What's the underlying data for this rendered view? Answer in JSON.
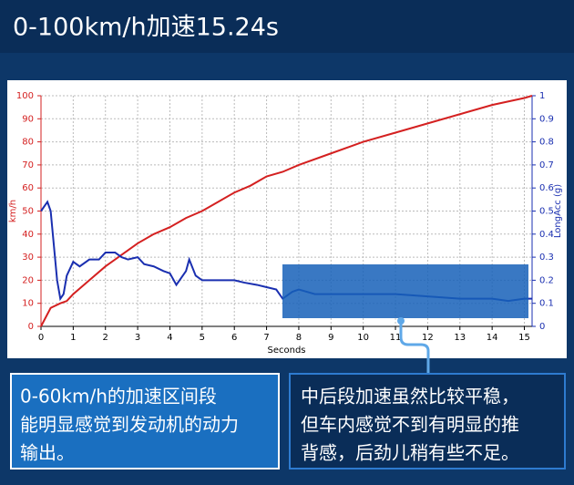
{
  "header": {
    "title": "0-100km/h加速15.24s"
  },
  "chart_data": {
    "type": "line",
    "x_label": "Seconds",
    "y_label": "km/h",
    "y2_label": "LongAcc (g)",
    "xlim": [
      0,
      15.24
    ],
    "xticks": [
      0,
      1,
      2,
      3,
      4,
      5,
      6,
      7,
      8,
      9,
      10,
      11,
      12,
      13,
      14,
      15
    ],
    "ylim": [
      0,
      100
    ],
    "yticks": [
      0,
      10,
      20,
      30,
      40,
      50,
      60,
      70,
      80,
      90,
      100
    ],
    "y2lim": [
      0,
      1
    ],
    "y2ticks": [
      0,
      0.1,
      0.2,
      0.3,
      0.4,
      0.5,
      0.6,
      0.7,
      0.8,
      0.9,
      1
    ],
    "grid": true,
    "series": [
      {
        "name": "km/h",
        "color": "#d42020",
        "x": [
          0,
          0.3,
          0.6,
          0.8,
          1,
          1.5,
          2,
          2.5,
          3,
          3.5,
          4,
          4.5,
          5,
          5.5,
          6,
          6.5,
          7,
          7.5,
          8,
          9,
          10,
          11,
          12,
          13,
          14,
          15,
          15.24
        ],
        "values": [
          0,
          8,
          10,
          11,
          14,
          20,
          26,
          31,
          36,
          40,
          43,
          47,
          50,
          54,
          58,
          61,
          65,
          67,
          70,
          75,
          80,
          84,
          88,
          92,
          96,
          99,
          100
        ]
      },
      {
        "name": "LongAcc (g)",
        "color": "#1a2fb0",
        "axis": "y2",
        "x": [
          0,
          0.2,
          0.3,
          0.4,
          0.5,
          0.6,
          0.7,
          0.8,
          1,
          1.2,
          1.5,
          1.8,
          2,
          2.3,
          2.5,
          2.7,
          3,
          3.2,
          3.5,
          3.8,
          4,
          4.2,
          4.3,
          4.5,
          4.6,
          4.8,
          5,
          5.5,
          6,
          6.3,
          6.7,
          7,
          7.3,
          7.5,
          7.8,
          8,
          8.5,
          9,
          10,
          11,
          12,
          13,
          14,
          14.5,
          15,
          15.24
        ],
        "values": [
          0.5,
          0.54,
          0.5,
          0.35,
          0.2,
          0.12,
          0.14,
          0.22,
          0.28,
          0.26,
          0.29,
          0.29,
          0.32,
          0.32,
          0.3,
          0.29,
          0.3,
          0.27,
          0.26,
          0.24,
          0.23,
          0.18,
          0.2,
          0.24,
          0.29,
          0.22,
          0.2,
          0.2,
          0.2,
          0.19,
          0.18,
          0.17,
          0.16,
          0.12,
          0.15,
          0.16,
          0.14,
          0.14,
          0.14,
          0.14,
          0.13,
          0.12,
          0.12,
          0.11,
          0.12,
          0.12
        ]
      }
    ]
  },
  "notes": {
    "left": [
      "0-60km/h的加速区间段",
      "能明显感觉到发动机的动力",
      "输出。"
    ],
    "right": [
      "中后段加速虽然比较平稳，",
      "但车内感觉不到有明显的推",
      "背感，后劲儿稍有些不足。"
    ]
  }
}
